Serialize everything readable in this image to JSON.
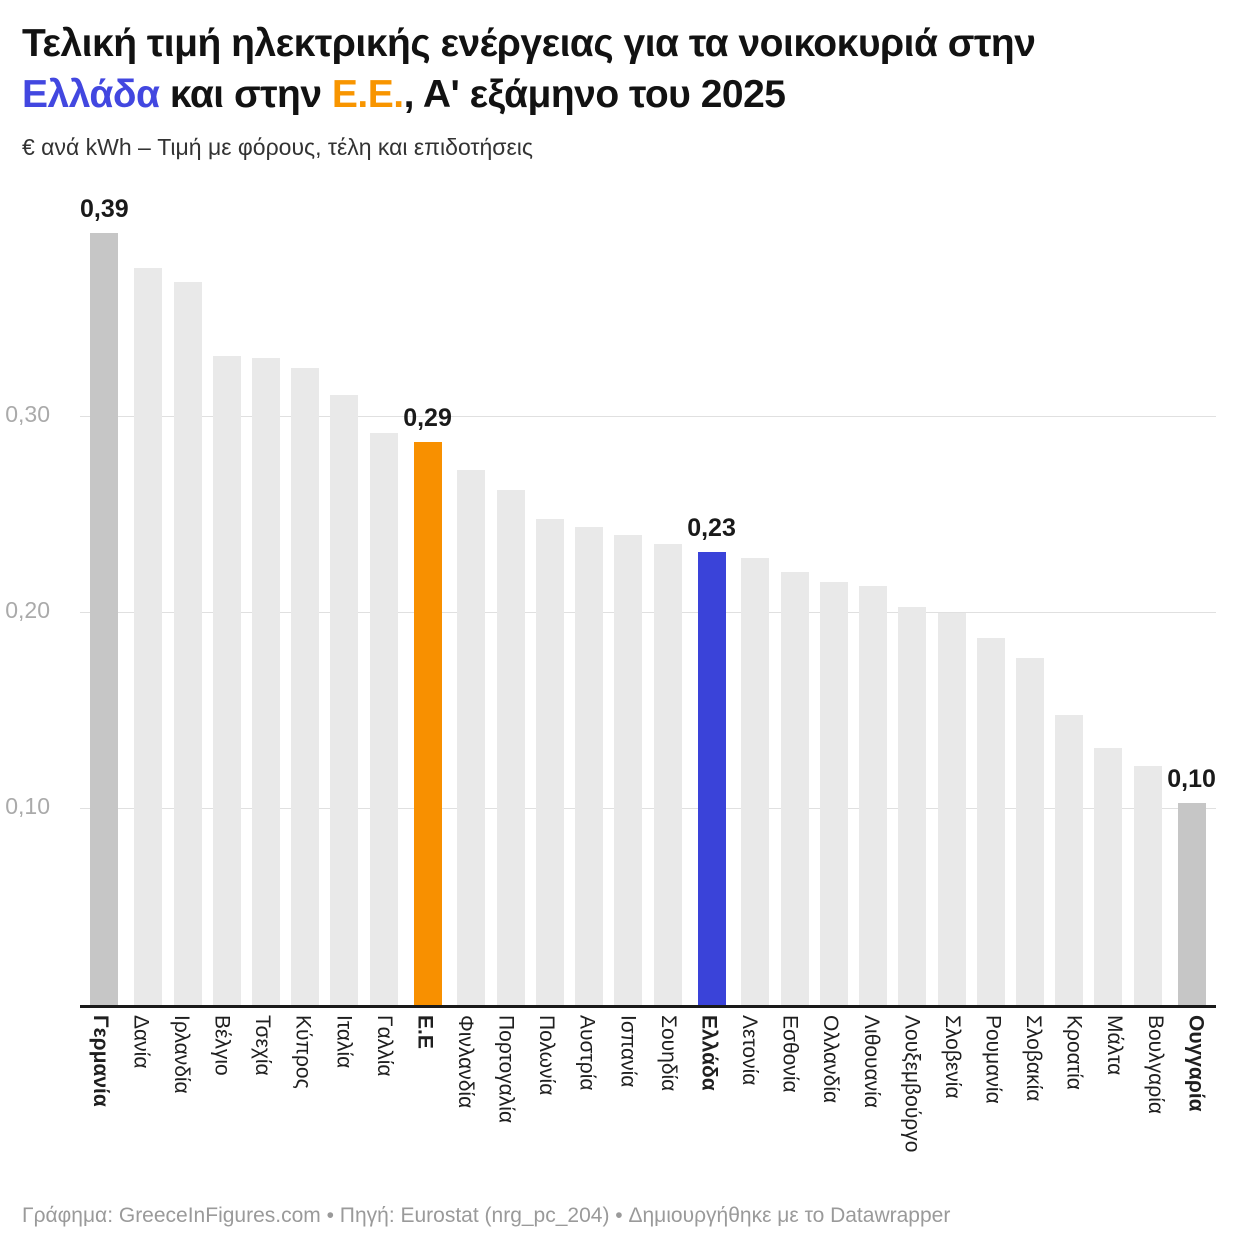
{
  "header": {
    "title_line1": "Τελική τιμή ηλεκτρικής ενέργειας για τα νοικοκυριά στην",
    "title_greece": "Ελλάδα",
    "title_mid": " και στην ",
    "title_eu": "Ε.Ε.",
    "title_tail": ", Α' εξάμηνο του 2025",
    "subtitle": "€ ανά kWh – Τιμή με φόρους, τέλη και επιδοτήσεις",
    "accent_blue": "#4247e0",
    "accent_orange": "#f89500"
  },
  "footer": {
    "text": "Γράφημα: GreeceInFigures.com • Πηγή: Eurostat (nrg_pc_204) • Δημιουργήθηκε με το Datawrapper"
  },
  "chart_data": {
    "type": "bar",
    "title": "Τελική τιμή ηλεκτρικής ενέργειας για τα νοικοκυριά στην Ελλάδα και στην Ε.Ε., Α' εξάμηνο του 2025",
    "subtitle": "€ ανά kWh – Τιμή με φόρους, τέλη και επιδοτήσεις",
    "xlabel": "",
    "ylabel": "€ ανά kWh",
    "ylim": [
      0,
      0.4
    ],
    "grid": "horizontal",
    "legend": "none",
    "gridline_values": [
      0.1,
      0.2,
      0.3
    ],
    "ytick_labels": [
      "0,10",
      "0,20",
      "0,30"
    ],
    "colors": {
      "default": "#e9e9e9",
      "gray_dark": "#c6c6c6",
      "orange": "#f89000",
      "blue": "#3a43d9"
    },
    "bars": [
      {
        "name": "Γερμανία",
        "value": 0.394,
        "label": "0,39",
        "color_key": "gray_dark",
        "bold": true
      },
      {
        "name": "Δανία",
        "value": 0.376,
        "label": null,
        "color_key": "default",
        "bold": false
      },
      {
        "name": "Ιρλανδία",
        "value": 0.369,
        "label": null,
        "color_key": "default",
        "bold": false
      },
      {
        "name": "Βέλγιο",
        "value": 0.331,
        "label": null,
        "color_key": "default",
        "bold": false
      },
      {
        "name": "Τσεχία",
        "value": 0.33,
        "label": null,
        "color_key": "default",
        "bold": false
      },
      {
        "name": "Κύπρος",
        "value": 0.325,
        "label": null,
        "color_key": "default",
        "bold": false
      },
      {
        "name": "Ιταλία",
        "value": 0.311,
        "label": null,
        "color_key": "default",
        "bold": false
      },
      {
        "name": "Γαλλία",
        "value": 0.292,
        "label": null,
        "color_key": "default",
        "bold": false
      },
      {
        "name": "Ε.Ε",
        "value": 0.287,
        "label": "0,29",
        "color_key": "orange",
        "bold": true
      },
      {
        "name": "Φινλανδία",
        "value": 0.273,
        "label": null,
        "color_key": "default",
        "bold": false
      },
      {
        "name": "Πορτογαλία",
        "value": 0.263,
        "label": null,
        "color_key": "default",
        "bold": false
      },
      {
        "name": "Πολωνία",
        "value": 0.248,
        "label": null,
        "color_key": "default",
        "bold": false
      },
      {
        "name": "Αυστρία",
        "value": 0.244,
        "label": null,
        "color_key": "default",
        "bold": false
      },
      {
        "name": "Ισπανία",
        "value": 0.24,
        "label": null,
        "color_key": "default",
        "bold": false
      },
      {
        "name": "Σουηδία",
        "value": 0.235,
        "label": null,
        "color_key": "default",
        "bold": false
      },
      {
        "name": "Ελλάδα",
        "value": 0.231,
        "label": "0,23",
        "color_key": "blue",
        "bold": true
      },
      {
        "name": "Λετονία",
        "value": 0.228,
        "label": null,
        "color_key": "default",
        "bold": false
      },
      {
        "name": "Εσθονία",
        "value": 0.221,
        "label": null,
        "color_key": "default",
        "bold": false
      },
      {
        "name": "Ολλανδία",
        "value": 0.216,
        "label": null,
        "color_key": "default",
        "bold": false
      },
      {
        "name": "Λιθουανία",
        "value": 0.214,
        "label": null,
        "color_key": "default",
        "bold": false
      },
      {
        "name": "Λουξεμβούργο",
        "value": 0.203,
        "label": null,
        "color_key": "default",
        "bold": false
      },
      {
        "name": "Σλοβενία",
        "value": 0.2,
        "label": null,
        "color_key": "default",
        "bold": false
      },
      {
        "name": "Ρουμανία",
        "value": 0.187,
        "label": null,
        "color_key": "default",
        "bold": false
      },
      {
        "name": "Σλοβακία",
        "value": 0.177,
        "label": null,
        "color_key": "default",
        "bold": false
      },
      {
        "name": "Κροατία",
        "value": 0.148,
        "label": null,
        "color_key": "default",
        "bold": false
      },
      {
        "name": "Μάλτα",
        "value": 0.131,
        "label": null,
        "color_key": "default",
        "bold": false
      },
      {
        "name": "Βουλγαρία",
        "value": 0.122,
        "label": null,
        "color_key": "default",
        "bold": false
      },
      {
        "name": "Ουγγαρία",
        "value": 0.103,
        "label": "0,10",
        "color_key": "gray_dark",
        "bold": true
      }
    ]
  }
}
